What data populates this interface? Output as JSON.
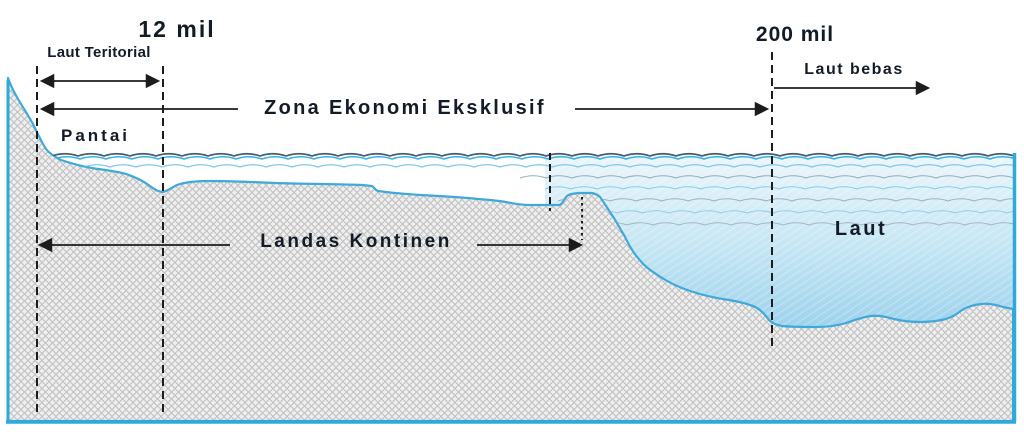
{
  "diagram_title": "Zona maritim (cross-section diagram)",
  "labels": {
    "mil12": "12 mil",
    "laut_teritorial": "Laut Teritorial",
    "pantai": "Pantai",
    "zee": "Zona Ekonomi Eksklusif",
    "mil200": "200 mil",
    "laut_bebas": "Laut bebas",
    "landas_kontinen": "Landas Kontinen",
    "laut": "Laut"
  },
  "colors": {
    "frame": "#2ea9dc",
    "terrain-edge": "#3fa9d8",
    "terrain-fill": "#efefef",
    "terrain-lattice": "#c3c3c3",
    "deep-top": "#edf6fb",
    "deep-mid": "#c4e5f4",
    "deep-bottom": "#9ed2ec",
    "wave-dark": "#4a5b6d",
    "wave-cyan": "#35b2e6",
    "wave-mid": "#8aa3b6",
    "wave-light-cyan": "#76c6e8",
    "arrow": "#1c1c1c",
    "dash": "#1c1c1c",
    "text": "#131b26"
  }
}
